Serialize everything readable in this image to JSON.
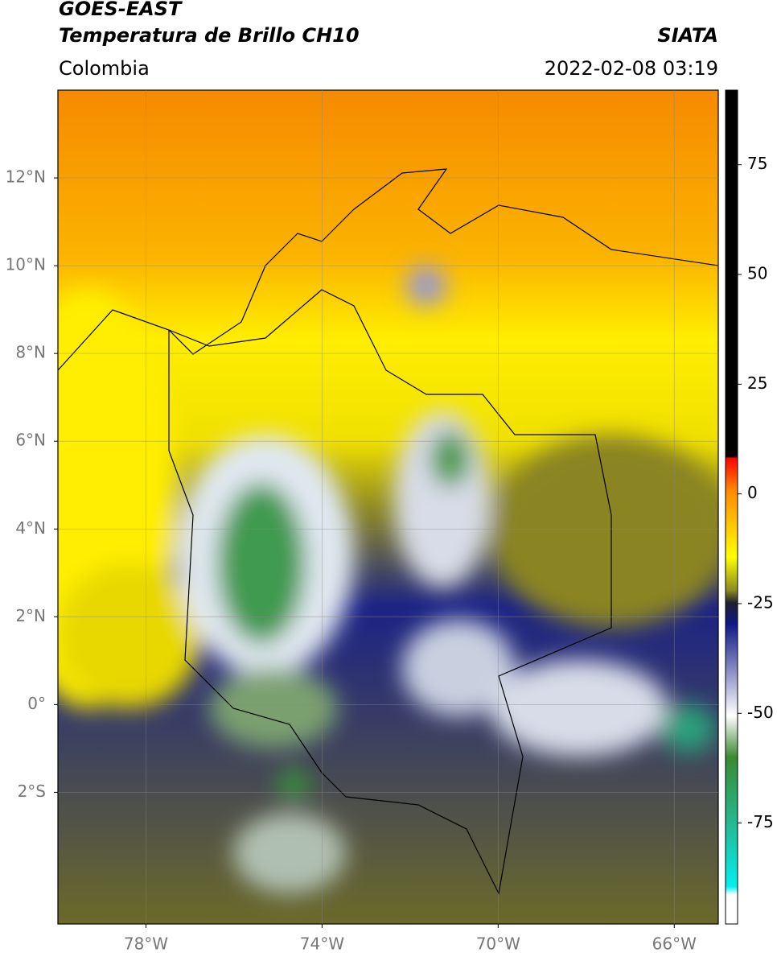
{
  "header": {
    "title": "GOES-EAST",
    "subtitle": "Temperatura de Brillo CH10",
    "region": "Colombia",
    "source": "SIATA",
    "datetime": "2022-02-08 03:19"
  },
  "map": {
    "xlim": [
      -80,
      -65
    ],
    "ylim": [
      -5,
      14
    ],
    "lon_ticks": [
      {
        "value": -78,
        "label": "78°W"
      },
      {
        "value": -74,
        "label": "74°W"
      },
      {
        "value": -70,
        "label": "70°W"
      },
      {
        "value": -66,
        "label": "66°W"
      }
    ],
    "lat_ticks": [
      {
        "value": 12,
        "label": "12°N"
      },
      {
        "value": 10,
        "label": "10°N"
      },
      {
        "value": 8,
        "label": "8°N"
      },
      {
        "value": 6,
        "label": "6°N"
      },
      {
        "value": 4,
        "label": "4°N"
      },
      {
        "value": 2,
        "label": "2°N"
      },
      {
        "value": 0,
        "label": "0°"
      },
      {
        "value": -2,
        "label": "2°S"
      }
    ],
    "grid": true
  },
  "colorbar": {
    "clim": [
      -98,
      92
    ],
    "ticks": [
      75,
      50,
      25,
      0,
      -25,
      -50,
      -75
    ]
  }
}
